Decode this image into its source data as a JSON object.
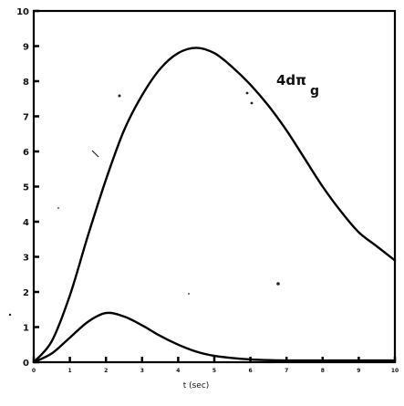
{
  "chart_data": {
    "type": "line",
    "title": "",
    "annotation": "4dπ",
    "annotation_sub": "g",
    "xlabel": "t (sec)",
    "ylabel": "",
    "xlim": [
      0,
      10
    ],
    "ylim": [
      0,
      10
    ],
    "x_tick_labels": [
      "0",
      "1",
      "2",
      "3",
      "4",
      "5",
      "6",
      "7",
      "8",
      "9",
      "10"
    ],
    "y_tick_labels": [
      "0",
      "1",
      "2",
      "3",
      "4",
      "5",
      "6",
      "7",
      "8",
      "9",
      "10"
    ],
    "grid": false,
    "series": [
      {
        "x": [
          0,
          0.5,
          1.0,
          1.5,
          2.0,
          2.5,
          3.0,
          3.5,
          4.0,
          4.5,
          5.0,
          5.5,
          6.0,
          6.5,
          7.0,
          7.5,
          8.0,
          8.5,
          9.0,
          9.5,
          10.0
        ],
        "values": [
          0,
          0.6,
          1.9,
          3.6,
          5.2,
          6.6,
          7.6,
          8.35,
          8.8,
          8.95,
          8.8,
          8.4,
          7.9,
          7.3,
          6.6,
          5.8,
          5.0,
          4.3,
          3.7,
          3.3,
          2.9
        ]
      },
      {
        "x": [
          0,
          0.5,
          1.0,
          1.5,
          2.0,
          2.5,
          3.0,
          3.5,
          4.0,
          4.5,
          5.0,
          5.5,
          6.0,
          6.5,
          7.0,
          7.5,
          8.0,
          8.5,
          9.0,
          9.5,
          10.0
        ],
        "values": [
          0,
          0.25,
          0.7,
          1.15,
          1.4,
          1.3,
          1.05,
          0.75,
          0.5,
          0.3,
          0.18,
          0.12,
          0.08,
          0.06,
          0.05,
          0.05,
          0.05,
          0.05,
          0.05,
          0.05,
          0.05
        ]
      }
    ]
  }
}
